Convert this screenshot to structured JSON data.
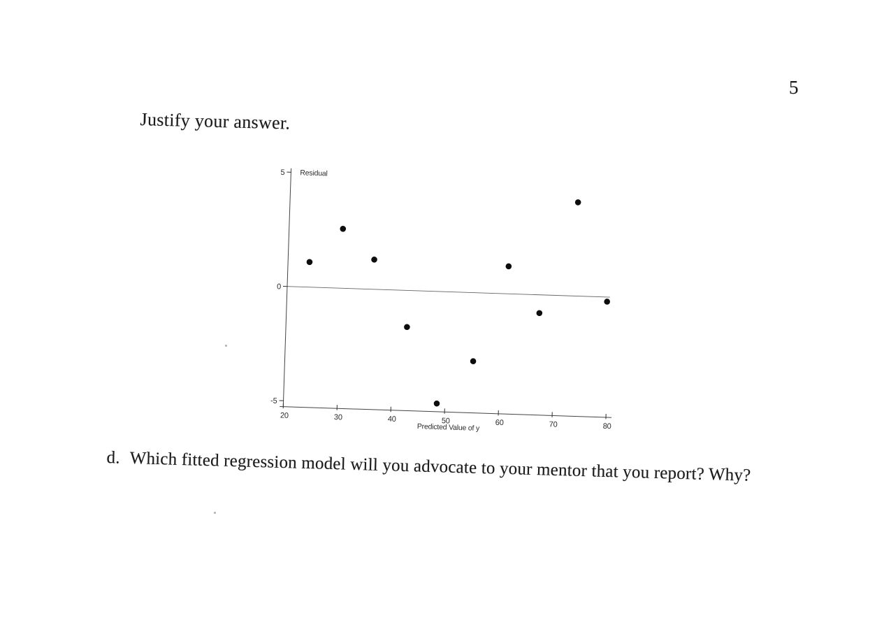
{
  "page": {
    "number": "5",
    "prompt_text": "Justify your answer.",
    "question_label": "d.",
    "question_text": "Which fitted regression model will you advocate to your mentor that you report? Why?"
  },
  "chart_data": {
    "type": "scatter",
    "title": "",
    "xlabel": "Predicted Value of y",
    "ylabel": "Residual",
    "xlim": [
      20,
      80
    ],
    "ylim": [
      -5,
      5
    ],
    "x_ticks": [
      20,
      30,
      40,
      50,
      60,
      70,
      80
    ],
    "y_ticks": [
      5,
      0,
      -5
    ],
    "grid": false,
    "legend": false,
    "zero_line_y": 0,
    "marker": "filled-circle",
    "marker_color": "#0d0d0d",
    "axis_color": "#2f2f2f",
    "series": [
      {
        "name": "residuals",
        "points": [
          {
            "x": 24,
            "y": 1.1
          },
          {
            "x": 30,
            "y": 2.6
          },
          {
            "x": 36,
            "y": 1.3
          },
          {
            "x": 42.5,
            "y": -1.6
          },
          {
            "x": 48.5,
            "y": -4.9
          },
          {
            "x": 55,
            "y": -3.0
          },
          {
            "x": 61,
            "y": 1.2
          },
          {
            "x": 67,
            "y": -0.8
          },
          {
            "x": 73.5,
            "y": 4.1
          },
          {
            "x": 79.5,
            "y": -0.2
          }
        ]
      }
    ]
  }
}
